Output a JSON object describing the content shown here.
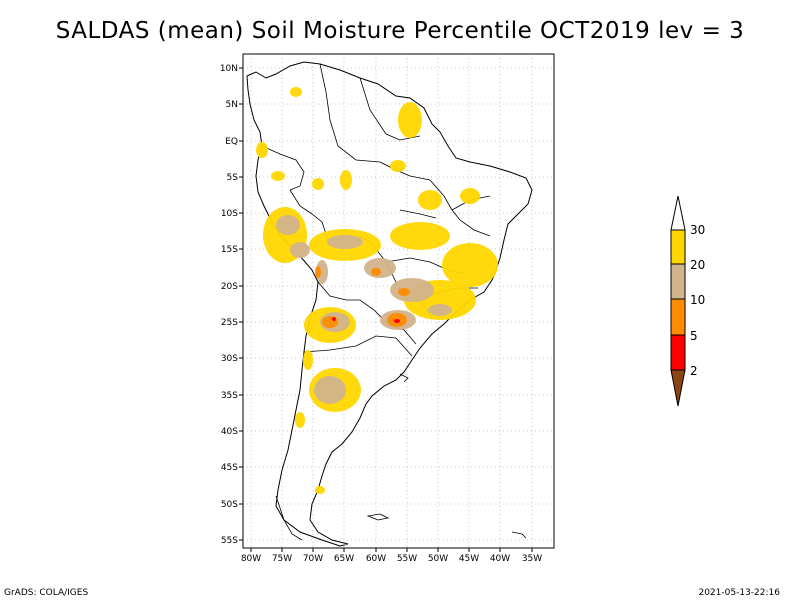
{
  "title": "SALDAS (mean) Soil Moisture Percentile OCT2019 lev = 3",
  "footer_left": "GrADS: COLA/IGES",
  "footer_right": "2021-05-13-22:16",
  "lat_labels": [
    "10N",
    "5N",
    "EQ",
    "5S",
    "10S",
    "15S",
    "20S",
    "25S",
    "30S",
    "35S",
    "40S",
    "45S",
    "50S",
    "55S"
  ],
  "lon_labels": [
    "80W",
    "75W",
    "70W",
    "65W",
    "60W",
    "55W",
    "50W",
    "45W",
    "40W",
    "35W"
  ],
  "colorbar": {
    "labels": [
      "30",
      "20",
      "10",
      "5",
      "2"
    ],
    "colors": [
      "#ffffff",
      "#ffd700",
      "#d2b48c",
      "#ff8c00",
      "#ff0000",
      "#8b4513"
    ]
  },
  "legend_colors": {
    "above30": "#ffffff",
    "p20_30": "#ffd700",
    "p10_20": "#d2b48c",
    "p5_10": "#ff8c00",
    "p2_5": "#ff0000",
    "below2": "#8b4513"
  }
}
